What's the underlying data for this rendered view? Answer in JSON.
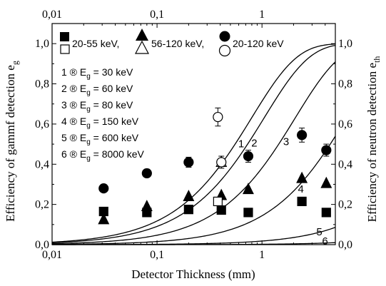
{
  "chart_data": {
    "type": "scatter",
    "xscale": "log",
    "xlim": [
      0.01,
      5
    ],
    "ylim": [
      0,
      1.1
    ],
    "xlabel": "Detector Thickness (mm)",
    "ylabel_left": "Efficiency of gammf detection e",
    "ylabel_left_sub": "g",
    "ylabel_right": "Efficiency of neutron detection e",
    "ylabel_right_sub": "th",
    "x_ticks": [
      {
        "value": 0.01,
        "label": "0,01"
      },
      {
        "value": 0.1,
        "label": "0,1"
      },
      {
        "value": 1,
        "label": "1"
      }
    ],
    "x_ticks_top": [
      {
        "value": 0.01,
        "label": "0,01"
      },
      {
        "value": 0.1,
        "label": "0,1"
      },
      {
        "value": 1,
        "label": "1"
      }
    ],
    "y_ticks": [
      {
        "value": 0.0,
        "label": "0,0"
      },
      {
        "value": 0.2,
        "label": "0,2"
      },
      {
        "value": 0.4,
        "label": "0,4"
      },
      {
        "value": 0.6,
        "label": "0,6"
      },
      {
        "value": 0.8,
        "label": "0,8"
      },
      {
        "value": 1.0,
        "label": "1,0"
      }
    ],
    "legend": [
      {
        "label": "20-55  keV,",
        "marker": "square"
      },
      {
        "label": "56-120  keV,",
        "marker": "triangle"
      },
      {
        "label": "20-120  keV",
        "marker": "circle"
      }
    ],
    "curve_legend": [
      {
        "num": "1",
        "text": "® E",
        "sub": "g",
        "value": "= 30  keV"
      },
      {
        "num": "2",
        "text": "® E",
        "sub": "g",
        "value": "= 60  keV"
      },
      {
        "num": "3",
        "text": "® E",
        "sub": "g",
        "value": "= 80  keV"
      },
      {
        "num": "4",
        "text": "® E",
        "sub": "g",
        "value": "= 150  keV"
      },
      {
        "num": "5",
        "text": "® E",
        "sub": "g",
        "value": "= 600  keV"
      },
      {
        "num": "6",
        "text": "® E",
        "sub": "g",
        "value": "= 8000  keV"
      }
    ],
    "curves": [
      {
        "name": "1",
        "k": 1.25,
        "label_at": 0.54
      },
      {
        "name": "2",
        "k": 0.95,
        "label_at": 0.72
      },
      {
        "name": "3",
        "k": 0.48,
        "label_at": 1.45
      },
      {
        "name": "4",
        "k": 0.155,
        "label_at": 2.0
      },
      {
        "name": "5",
        "k": 0.018,
        "label_at": 3.0
      },
      {
        "name": "6",
        "k": 0.002,
        "label_at": 3.4
      }
    ],
    "series": [
      {
        "marker": "square",
        "fill": "filled",
        "points": [
          {
            "x": 0.031,
            "y": 0.165
          },
          {
            "x": 0.08,
            "y": 0.16
          },
          {
            "x": 0.2,
            "y": 0.175
          },
          {
            "x": 0.41,
            "y": 0.172
          },
          {
            "x": 0.74,
            "y": 0.16
          },
          {
            "x": 2.4,
            "y": 0.215
          },
          {
            "x": 4.1,
            "y": 0.16
          }
        ]
      },
      {
        "marker": "triangle",
        "fill": "filled",
        "points": [
          {
            "x": 0.031,
            "y": 0.125
          },
          {
            "x": 0.08,
            "y": 0.19
          },
          {
            "x": 0.2,
            "y": 0.24
          },
          {
            "x": 0.41,
            "y": 0.245
          },
          {
            "x": 0.74,
            "y": 0.275
          },
          {
            "x": 2.4,
            "y": 0.33
          },
          {
            "x": 4.1,
            "y": 0.305
          }
        ]
      },
      {
        "marker": "circle",
        "fill": "filled",
        "points": [
          {
            "x": 0.031,
            "y": 0.28,
            "err": 0
          },
          {
            "x": 0.08,
            "y": 0.355,
            "err": 0.02
          },
          {
            "x": 0.2,
            "y": 0.41,
            "err": 0.025
          },
          {
            "x": 0.74,
            "y": 0.44,
            "err": 0.03
          },
          {
            "x": 2.4,
            "y": 0.545,
            "err": 0.035
          },
          {
            "x": 4.1,
            "y": 0.47,
            "err": 0.03
          }
        ]
      },
      {
        "marker": "square",
        "fill": "open",
        "points": [
          {
            "x": 0.38,
            "y": 0.215
          }
        ]
      },
      {
        "marker": "triangle",
        "fill": "open",
        "points": [
          {
            "x": 0.41,
            "y": 0.41
          }
        ]
      },
      {
        "marker": "circle",
        "fill": "open",
        "points": [
          {
            "x": 0.38,
            "y": 0.635,
            "err": 0.045
          },
          {
            "x": 0.41,
            "y": 0.41,
            "err": 0.03
          }
        ]
      }
    ]
  }
}
